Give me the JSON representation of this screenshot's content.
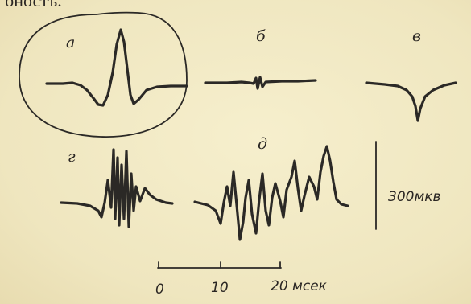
{
  "header_text": "бностъ.",
  "panels": [
    {
      "id": "a",
      "label": "а"
    },
    {
      "id": "b",
      "label": "б"
    },
    {
      "id": "v",
      "label": "в"
    },
    {
      "id": "g",
      "label": "г"
    },
    {
      "id": "d",
      "label": "д"
    }
  ],
  "amplitude_scale": {
    "value": "300",
    "unit": "мкв"
  },
  "time_scale": {
    "ticks": [
      "0",
      "10",
      "20"
    ],
    "unit": "мсек"
  }
}
